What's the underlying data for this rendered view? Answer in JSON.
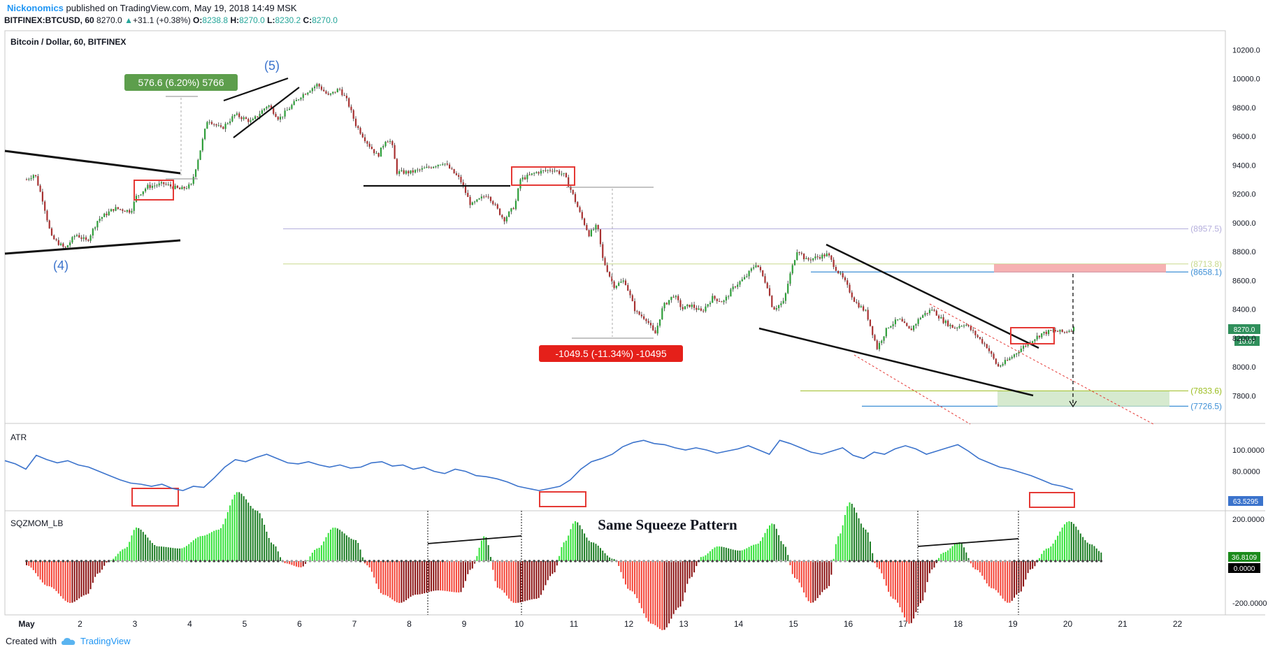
{
  "header": {
    "author": "Nickonomics",
    "published": "published on TradingView.com, May 19, 2018 14:49 MSK",
    "symbol": "BITFINEX:BTCUSD, 60",
    "last": "8270.0",
    "change": "+31.1 (+0.38%)",
    "open_label": "O:",
    "open": "8238.8",
    "high_label": "H:",
    "high": "8270.0",
    "low_label": "L:",
    "low": "8230.2",
    "close_label": "C:",
    "close": "8270.0"
  },
  "footer": {
    "created_with": "Created with",
    "brand": "TradingView"
  },
  "chart_data": [
    {
      "type": "candlestick",
      "title": "Bitcoin / Dollar, 60, BITFINEX",
      "x_ticks": [
        "May",
        "2",
        "3",
        "4",
        "5",
        "6",
        "7",
        "8",
        "9",
        "10",
        "11",
        "12",
        "13",
        "14",
        "15",
        "16",
        "17",
        "18",
        "19",
        "20",
        "21",
        "22"
      ],
      "y_ticks": [
        7800,
        8000,
        8200,
        8400,
        8600,
        8800,
        9000,
        9200,
        9400,
        9600,
        9800,
        10000,
        10200
      ],
      "ylim": [
        7620,
        10280
      ],
      "price_path": [
        [
          0.0,
          9300
        ],
        [
          0.15,
          9340
        ],
        [
          0.3,
          9150
        ],
        [
          0.45,
          8900
        ],
        [
          0.7,
          8820
        ],
        [
          0.9,
          8920
        ],
        [
          1.1,
          8870
        ],
        [
          1.3,
          9020
        ],
        [
          1.6,
          9100
        ],
        [
          1.9,
          9080
        ],
        [
          2.0,
          9180
        ],
        [
          2.2,
          9250
        ],
        [
          2.5,
          9270
        ],
        [
          2.8,
          9230
        ],
        [
          3.0,
          9260
        ],
        [
          3.15,
          9480
        ],
        [
          3.3,
          9720
        ],
        [
          3.55,
          9650
        ],
        [
          3.8,
          9750
        ],
        [
          4.1,
          9700
        ],
        [
          4.4,
          9820
        ],
        [
          4.6,
          9720
        ],
        [
          4.8,
          9800
        ],
        [
          5.0,
          9880
        ],
        [
          5.3,
          9960
        ],
        [
          5.5,
          9880
        ],
        [
          5.7,
          9930
        ],
        [
          5.85,
          9840
        ],
        [
          6.0,
          9680
        ],
        [
          6.2,
          9560
        ],
        [
          6.4,
          9460
        ],
        [
          6.55,
          9580
        ],
        [
          6.65,
          9560
        ],
        [
          6.75,
          9350
        ],
        [
          7.0,
          9350
        ],
        [
          7.3,
          9380
        ],
        [
          7.6,
          9420
        ],
        [
          7.9,
          9300
        ],
        [
          8.1,
          9120
        ],
        [
          8.4,
          9200
        ],
        [
          8.7,
          9020
        ],
        [
          8.9,
          9120
        ],
        [
          9.0,
          9300
        ],
        [
          9.3,
          9350
        ],
        [
          9.6,
          9370
        ],
        [
          9.8,
          9330
        ],
        [
          9.95,
          9200
        ],
        [
          10.1,
          9050
        ],
        [
          10.25,
          8920
        ],
        [
          10.4,
          8980
        ],
        [
          10.5,
          8750
        ],
        [
          10.7,
          8560
        ],
        [
          10.9,
          8600
        ],
        [
          11.1,
          8380
        ],
        [
          11.3,
          8330
        ],
        [
          11.45,
          8220
        ],
        [
          11.6,
          8420
        ],
        [
          11.8,
          8500
        ],
        [
          11.95,
          8400
        ],
        [
          12.1,
          8430
        ],
        [
          12.3,
          8380
        ],
        [
          12.5,
          8480
        ],
        [
          12.7,
          8450
        ],
        [
          12.9,
          8560
        ],
        [
          13.1,
          8620
        ],
        [
          13.3,
          8720
        ],
        [
          13.5,
          8560
        ],
        [
          13.6,
          8400
        ],
        [
          13.8,
          8450
        ],
        [
          13.9,
          8620
        ],
        [
          14.05,
          8820
        ],
        [
          14.2,
          8740
        ],
        [
          14.4,
          8760
        ],
        [
          14.6,
          8780
        ],
        [
          14.75,
          8680
        ],
        [
          14.9,
          8600
        ],
        [
          15.1,
          8450
        ],
        [
          15.3,
          8380
        ],
        [
          15.5,
          8130
        ],
        [
          15.7,
          8280
        ],
        [
          15.9,
          8330
        ],
        [
          16.1,
          8250
        ],
        [
          16.3,
          8350
        ],
        [
          16.5,
          8400
        ],
        [
          16.7,
          8320
        ],
        [
          16.9,
          8270
        ],
        [
          17.1,
          8300
        ],
        [
          17.3,
          8220
        ],
        [
          17.5,
          8140
        ],
        [
          17.7,
          8000
        ],
        [
          17.9,
          8050
        ],
        [
          18.1,
          8120
        ],
        [
          18.3,
          8180
        ],
        [
          18.5,
          8230
        ],
        [
          18.7,
          8250
        ],
        [
          18.9,
          8240
        ],
        [
          19.1,
          8270
        ]
      ],
      "annotations": {
        "wave_4": "(4)",
        "wave_5": "(5)",
        "range_up": "576.6 (6.20%) 5766",
        "range_down": "-1049.5 (-11.34%) -10495"
      },
      "levels": [
        {
          "label": "(8957.5)",
          "value": 8957.5,
          "color": "#b4aedc"
        },
        {
          "label": "(8713.8)",
          "value": 8713.8,
          "color": "#c8d98e"
        },
        {
          "label": "(8658.1)",
          "value": 8658.1,
          "color": "#3d8fd6"
        },
        {
          "label": "(7833.6)",
          "value": 7833.6,
          "color": "#9bbd1f"
        },
        {
          "label": "(7726.5)",
          "value": 7726.5,
          "color": "#3d8fd6"
        }
      ],
      "price_badge": "8270.0",
      "time_badge": "10:07"
    },
    {
      "type": "line",
      "title": "ATR",
      "y_ticks": [
        80,
        100
      ],
      "ylim": [
        55,
        112
      ],
      "series": [
        {
          "name": "ATR",
          "color": "#3b73cc",
          "values": [
            90,
            87,
            82,
            95,
            91,
            88,
            90,
            86,
            84,
            80,
            76,
            72,
            69,
            68,
            66,
            68,
            64,
            62,
            66,
            65,
            74,
            84,
            91,
            89,
            93,
            96,
            92,
            88,
            87,
            89,
            86,
            84,
            86,
            83,
            84,
            88,
            89,
            85,
            86,
            82,
            84,
            80,
            78,
            82,
            80,
            76,
            75,
            73,
            70,
            66,
            64,
            62,
            64,
            66,
            72,
            82,
            89,
            92,
            96,
            103,
            107,
            109,
            106,
            105,
            102,
            100,
            102,
            100,
            97,
            99,
            101,
            104,
            100,
            96,
            109,
            106,
            102,
            98,
            96,
            99,
            102,
            95,
            92,
            98,
            96,
            101,
            104,
            101,
            96,
            99,
            102,
            105,
            99,
            92,
            88,
            84,
            82,
            79,
            76,
            72,
            68,
            66,
            63
          ]
        }
      ],
      "value_badge": "63.5295"
    },
    {
      "type": "bar",
      "title": "SQZMOM_LB",
      "annotation": "Same Squeeze Pattern",
      "y_ticks": [
        -200,
        200
      ],
      "ylim": [
        -320,
        320
      ],
      "momentum_knots": [
        [
          0.0,
          -20
        ],
        [
          0.4,
          -120
        ],
        [
          0.8,
          -200
        ],
        [
          1.1,
          -160
        ],
        [
          1.3,
          -60
        ],
        [
          1.5,
          0
        ],
        [
          1.8,
          60
        ],
        [
          2.0,
          160
        ],
        [
          2.4,
          70
        ],
        [
          2.8,
          60
        ],
        [
          3.2,
          120
        ],
        [
          3.5,
          150
        ],
        [
          3.85,
          330
        ],
        [
          4.2,
          240
        ],
        [
          4.5,
          80
        ],
        [
          4.7,
          -10
        ],
        [
          5.0,
          -30
        ],
        [
          5.3,
          60
        ],
        [
          5.6,
          160
        ],
        [
          6.0,
          100
        ],
        [
          6.2,
          -20
        ],
        [
          6.5,
          -160
        ],
        [
          6.8,
          -200
        ],
        [
          7.1,
          -160
        ],
        [
          7.5,
          -140
        ],
        [
          7.9,
          -150
        ],
        [
          8.1,
          -40
        ],
        [
          8.35,
          120
        ],
        [
          8.6,
          -130
        ],
        [
          8.9,
          -200
        ],
        [
          9.3,
          -180
        ],
        [
          9.6,
          -60
        ],
        [
          9.8,
          90
        ],
        [
          10.0,
          190
        ],
        [
          10.3,
          90
        ],
        [
          10.7,
          10
        ],
        [
          11.0,
          -140
        ],
        [
          11.4,
          -300
        ],
        [
          11.6,
          -330
        ],
        [
          11.9,
          -220
        ],
        [
          12.1,
          -80
        ],
        [
          12.3,
          20
        ],
        [
          12.6,
          70
        ],
        [
          13.0,
          50
        ],
        [
          13.3,
          80
        ],
        [
          13.6,
          180
        ],
        [
          13.8,
          80
        ],
        [
          14.0,
          -80
        ],
        [
          14.3,
          -200
        ],
        [
          14.6,
          -130
        ],
        [
          14.8,
          120
        ],
        [
          15.0,
          280
        ],
        [
          15.3,
          150
        ],
        [
          15.5,
          -30
        ],
        [
          15.8,
          -180
        ],
        [
          16.1,
          -300
        ],
        [
          16.3,
          -200
        ],
        [
          16.5,
          -40
        ],
        [
          16.7,
          40
        ],
        [
          17.0,
          90
        ],
        [
          17.3,
          -40
        ],
        [
          17.6,
          -130
        ],
        [
          17.9,
          -200
        ],
        [
          18.1,
          -150
        ],
        [
          18.3,
          -40
        ],
        [
          18.6,
          60
        ],
        [
          19.0,
          190
        ],
        [
          19.4,
          80
        ],
        [
          19.6,
          40
        ]
      ],
      "value_badges": [
        "36.8109",
        "0.0000"
      ]
    }
  ]
}
